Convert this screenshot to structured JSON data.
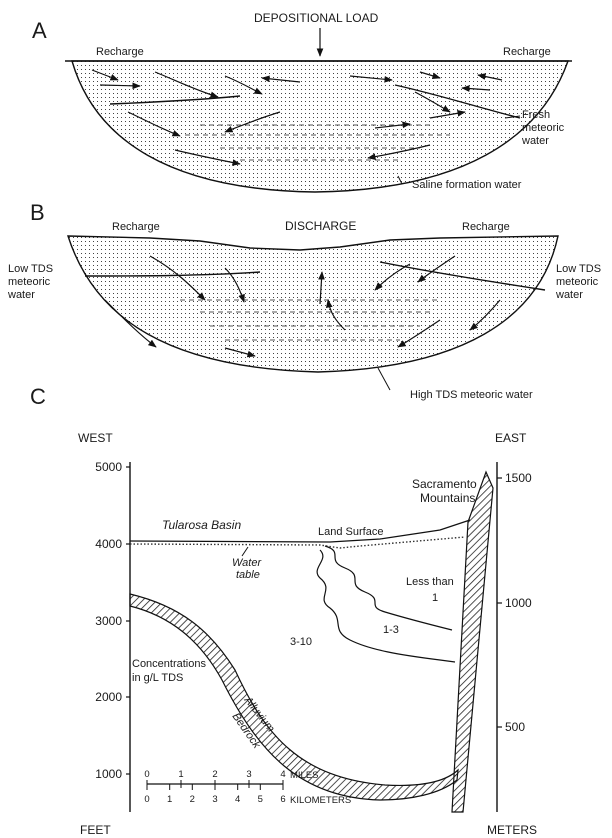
{
  "panel_a": {
    "letter": "A",
    "depositional_load": "DEPOSITIONAL LOAD",
    "recharge_left": "Recharge",
    "recharge_right": "Recharge",
    "fresh_meteoric_water": [
      "Fresh",
      "meteoric",
      "water"
    ],
    "saline_formation_water": "Saline formation water"
  },
  "panel_b": {
    "letter": "B",
    "recharge_left": "Recharge",
    "discharge": "DISCHARGE",
    "recharge_right": "Recharge",
    "low_tds_left": [
      "Low TDS",
      "meteoric",
      "water"
    ],
    "low_tds_right": [
      "Low TDS",
      "meteoric",
      "water"
    ],
    "high_tds_meteoric_water": "High TDS meteoric water"
  },
  "panel_c": {
    "letter": "C",
    "west": "WEST",
    "east": "EAST",
    "feet": "FEET",
    "meters": "METERS",
    "feet_ticks": [
      "5000",
      "4000",
      "3000",
      "2000",
      "1000"
    ],
    "meter_ticks": [
      "1500",
      "1000",
      "500"
    ],
    "sacramento_mountains": [
      "Sacramento",
      "Mountains"
    ],
    "tularosa_basin": "Tularosa Basin",
    "land_surface": "Land   Surface",
    "water_table": [
      "Water",
      "table"
    ],
    "less_than": [
      "Less than",
      "1"
    ],
    "range_1_3": "1-3",
    "range_3_10": "3-10",
    "concentrations": [
      "Concentrations",
      "in  g/L  TDS"
    ],
    "alluvium": "Alluvium",
    "bedrock": "Bedrock",
    "scale_miles_ticks": [
      "0",
      "1",
      "2",
      "3",
      "4"
    ],
    "scale_miles_label": "MILES",
    "scale_km_ticks": [
      "0",
      "1",
      "2",
      "3",
      "4",
      "5",
      "6"
    ],
    "scale_km_label": "KILOMETERS"
  }
}
